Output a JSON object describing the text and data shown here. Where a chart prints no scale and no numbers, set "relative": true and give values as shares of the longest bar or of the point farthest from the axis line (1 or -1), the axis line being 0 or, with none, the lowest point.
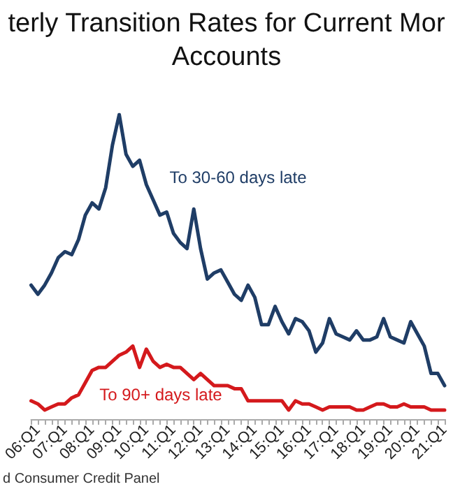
{
  "chart_data": {
    "type": "line",
    "title": "terly Transition Rates for Current Mor\nAccounts",
    "relative": true,
    "legend": false,
    "grid": false,
    "marker": "none",
    "line_style": "solid",
    "categories": [
      null,
      "06:Q1",
      null,
      null,
      null,
      "07:Q1",
      null,
      null,
      null,
      "08:Q1",
      null,
      null,
      null,
      "09:Q1",
      null,
      null,
      null,
      "10:Q1",
      null,
      null,
      null,
      "11:Q1",
      null,
      null,
      null,
      "12:Q1",
      null,
      null,
      null,
      "13:Q1",
      null,
      null,
      null,
      "14:Q1",
      null,
      null,
      null,
      "15:Q1",
      null,
      null,
      null,
      "16:Q1",
      null,
      null,
      null,
      "17:Q1",
      null,
      null,
      null,
      "18:Q1",
      null,
      null,
      null,
      "19:Q1",
      null,
      null,
      null,
      "20:Q1",
      null,
      null,
      null,
      "21:Q1"
    ],
    "series": [
      {
        "name": "To 30-60 days late",
        "color": "#1f3d66",
        "values": [
          0.44,
          0.41,
          0.44,
          0.48,
          0.53,
          0.55,
          0.54,
          0.59,
          0.67,
          0.71,
          0.69,
          0.76,
          0.9,
          1.0,
          0.87,
          0.83,
          0.85,
          0.77,
          0.72,
          0.67,
          0.68,
          0.61,
          0.58,
          0.56,
          0.69,
          0.56,
          0.46,
          0.48,
          0.49,
          0.45,
          0.41,
          0.39,
          0.44,
          0.4,
          0.31,
          0.31,
          0.37,
          0.32,
          0.28,
          0.33,
          0.32,
          0.29,
          0.22,
          0.25,
          0.33,
          0.28,
          0.27,
          0.26,
          0.29,
          0.26,
          0.26,
          0.27,
          0.33,
          0.27,
          0.26,
          0.25,
          0.32,
          0.28,
          0.24,
          0.15,
          0.15,
          0.11
        ]
      },
      {
        "name": "To 90+ days late",
        "color": "#d4191c",
        "values": [
          0.06,
          0.05,
          0.03,
          0.04,
          0.05,
          0.05,
          0.07,
          0.08,
          0.12,
          0.16,
          0.17,
          0.17,
          0.19,
          0.21,
          0.22,
          0.24,
          0.17,
          0.23,
          0.19,
          0.17,
          0.18,
          0.17,
          0.17,
          0.15,
          0.13,
          0.15,
          0.13,
          0.11,
          0.11,
          0.11,
          0.1,
          0.1,
          0.06,
          0.06,
          0.06,
          0.06,
          0.06,
          0.06,
          0.03,
          0.06,
          0.05,
          0.05,
          0.04,
          0.03,
          0.04,
          0.04,
          0.04,
          0.04,
          0.03,
          0.03,
          0.04,
          0.05,
          0.05,
          0.04,
          0.04,
          0.05,
          0.04,
          0.04,
          0.04,
          0.03,
          0.03,
          0.03
        ]
      }
    ],
    "annotations": [
      "d Consumer Credit Panel"
    ]
  }
}
